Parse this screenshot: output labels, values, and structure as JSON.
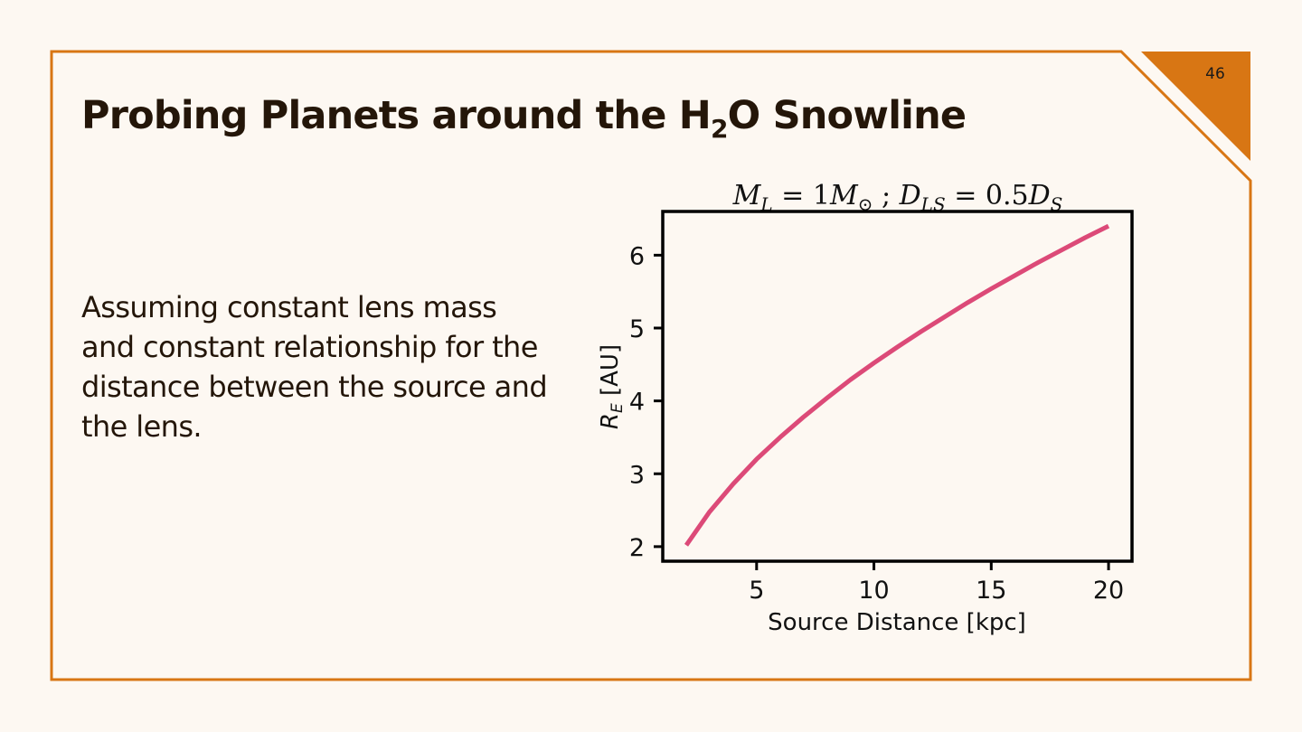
{
  "slide": {
    "page_number": "46",
    "title_prefix": "Probing Planets around the H",
    "title_subscript": "2",
    "title_suffix": "O Snowline",
    "body_text": "Assuming constant lens mass and constant relationship for the distance between the source and the lens.",
    "accent_color": "#d87614"
  },
  "chart_data": {
    "type": "line",
    "title": "M_L = 1M_⊙ ; D_LS = 0.5D_S",
    "xlabel": "Source Distance [kpc]",
    "ylabel": "R_E [AU]",
    "xlim": [
      1.0,
      21.0
    ],
    "ylim": [
      1.8,
      6.6
    ],
    "xticks": [
      5,
      10,
      15,
      20
    ],
    "yticks": [
      2,
      3,
      4,
      5,
      6
    ],
    "grid": false,
    "series": [
      {
        "color": "#dc4a78",
        "x": [
          2,
          3,
          4,
          5,
          6,
          7,
          8,
          9,
          10,
          11,
          12,
          13,
          14,
          15,
          16,
          17,
          18,
          19,
          20
        ],
        "y": [
          2.02,
          2.48,
          2.86,
          3.2,
          3.5,
          3.78,
          4.04,
          4.29,
          4.52,
          4.74,
          4.95,
          5.15,
          5.35,
          5.54,
          5.72,
          5.9,
          6.07,
          6.24,
          6.4
        ]
      }
    ]
  }
}
